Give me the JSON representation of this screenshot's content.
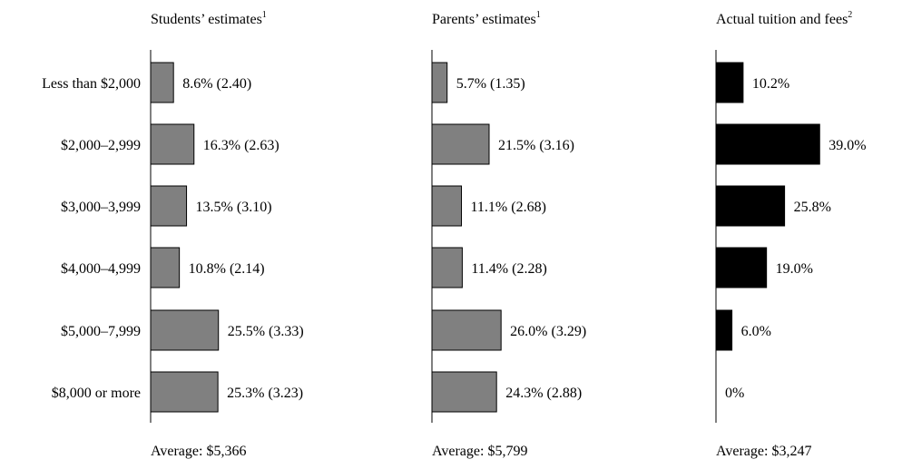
{
  "chart_data": {
    "type": "bar",
    "orientation": "horizontal",
    "categories": [
      "Less than $2,000",
      "$2,000–2,999",
      "$3,000–3,999",
      "$4,000–4,999",
      "$5,000–7,999",
      "$8,000 or more"
    ],
    "panels": [
      {
        "title": "Students’ estimates",
        "footnote": "1",
        "values": [
          8.6,
          16.3,
          13.5,
          10.8,
          25.5,
          25.3
        ],
        "labels": [
          "8.6% (2.40)",
          "16.3% (2.63)",
          "13.5% (3.10)",
          "10.8% (2.14)",
          "25.5% (3.33)",
          "25.3% (3.23)"
        ],
        "average": "Average: $5,366",
        "color": "#808080"
      },
      {
        "title": "Parents’ estimates",
        "footnote": "1",
        "values": [
          5.7,
          21.5,
          11.1,
          11.4,
          26.0,
          24.3
        ],
        "labels": [
          "5.7% (1.35)",
          "21.5% (3.16)",
          "11.1% (2.68)",
          "11.4% (2.28)",
          "26.0% (3.29)",
          "24.3% (2.88)"
        ],
        "average": "Average: $5,799",
        "color": "#808080"
      },
      {
        "title": "Actual tuition and fees",
        "footnote": "2",
        "values": [
          10.2,
          39.0,
          25.8,
          19.0,
          6.0,
          0
        ],
        "labels": [
          "10.2%",
          "39.0%",
          "25.8%",
          "19.0%",
          "6.0%",
          "0%"
        ],
        "average": "Average: $3,247",
        "color": "#000000"
      }
    ]
  }
}
